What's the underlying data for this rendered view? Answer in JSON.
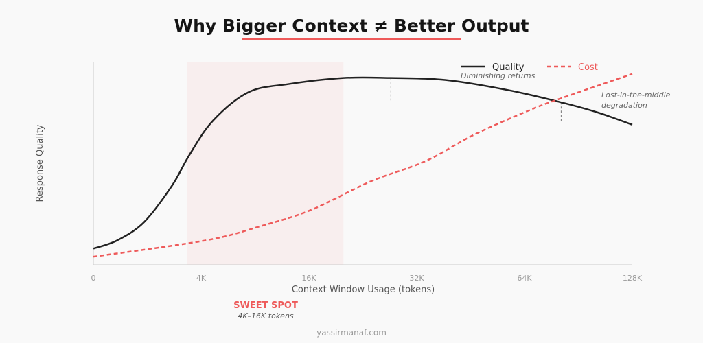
{
  "chart_data": {
    "type": "line",
    "title": "Why Bigger Context ≠ Better Output",
    "xlabel": "Context Window Usage (tokens)",
    "ylabel": "Response Quality",
    "x_ticks": [
      "0",
      "4K",
      "16K",
      "32K",
      "64K",
      "128K"
    ],
    "xlim": [
      0,
      5
    ],
    "ylim": [
      0,
      1
    ],
    "grid": false,
    "legend_position": "top-right",
    "series": [
      {
        "name": "Quality",
        "color": "#222222",
        "style": "solid",
        "x": [
          0,
          0.22,
          0.47,
          0.73,
          0.89,
          1.11,
          1.44,
          1.81,
          2.32,
          2.76,
          3.27,
          3.85,
          4.34,
          4.68,
          5
        ],
        "y": [
          0.08,
          0.12,
          0.21,
          0.39,
          0.54,
          0.71,
          0.85,
          0.89,
          0.92,
          0.92,
          0.91,
          0.86,
          0.8,
          0.75,
          0.69
        ]
      },
      {
        "name": "Cost",
        "color": "#ee5a5a",
        "style": "dashed",
        "x": [
          0,
          1.04,
          1.55,
          2.02,
          2.57,
          3.08,
          3.53,
          4.04,
          4.34,
          5
        ],
        "y": [
          0.04,
          0.12,
          0.19,
          0.27,
          0.41,
          0.51,
          0.64,
          0.76,
          0.82,
          0.94
        ]
      }
    ],
    "sweet_spot": {
      "x_range": [
        0.87,
        2.32
      ],
      "label": "SWEET SPOT",
      "sublabel": "4K–16K tokens",
      "color": "#f8eeee"
    },
    "annotations": [
      {
        "text": "Diminishing returns",
        "x": 2.76,
        "y_from": 0.92,
        "y_to": 0.81
      },
      {
        "text_lines": [
          "Lost-in-the-middle",
          "degradation"
        ],
        "x": 4.34,
        "y_from": 0.8,
        "y_to": 0.7
      }
    ],
    "footer": "yassirmanaf.com",
    "accent_color": "#ee5a5a"
  }
}
